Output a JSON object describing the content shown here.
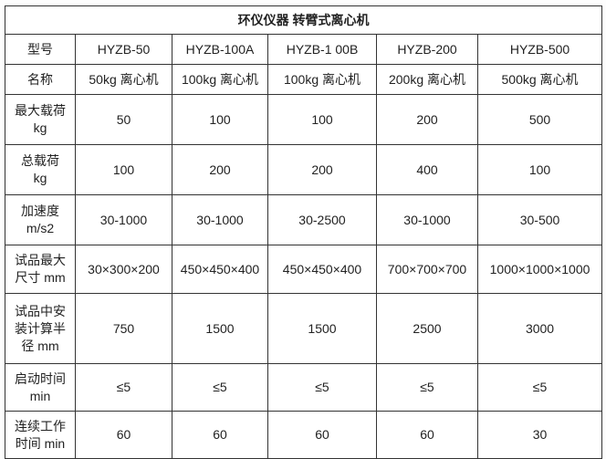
{
  "title": "环仪仪器 转臂式离心机",
  "colors": {
    "border": "#333333",
    "text": "#222222",
    "background": "#ffffff"
  },
  "table": {
    "rows": [
      {
        "label": "型号",
        "values": [
          "HYZB-50",
          "HYZB-100A",
          "HYZB-1 00B",
          "HYZB-200",
          "HYZB-500"
        ]
      },
      {
        "label": "名称",
        "values": [
          "50kg 离心机",
          "100kg 离心机",
          "100kg 离心机",
          "200kg 离心机",
          "500kg 离心机"
        ]
      },
      {
        "label": "最大载荷\nkg",
        "values": [
          "50",
          "100",
          "100",
          "200",
          "500"
        ]
      },
      {
        "label": "总载荷\nkg",
        "values": [
          "100",
          "200",
          "200",
          "400",
          "100"
        ]
      },
      {
        "label": "加速度\nm/s2",
        "values": [
          "30-1000",
          "30-1000",
          "30-2500",
          "30-1000",
          "30-500"
        ]
      },
      {
        "label": "试品最大\n尺寸 mm",
        "values": [
          "30×300×200",
          "450×450×400",
          "450×450×400",
          "700×700×700",
          "1000×1000×1000"
        ]
      },
      {
        "label": "试品中安\n装计算半\n径 mm",
        "values": [
          "750",
          "1500",
          "1500",
          "2500",
          "3000"
        ]
      },
      {
        "label": "启动时间\nmin",
        "values": [
          "≤5",
          "≤5",
          "≤5",
          "≤5",
          "≤5"
        ]
      },
      {
        "label": "连续工作\n时间 min",
        "values": [
          "60",
          "60",
          "60",
          "60",
          "30"
        ]
      }
    ]
  },
  "chart_data": {
    "type": "table",
    "title": "环仪仪器 转臂式离心机",
    "columns": [
      "型号",
      "HYZB-50",
      "HYZB-100A",
      "HYZB-1 00B",
      "HYZB-200",
      "HYZB-500"
    ],
    "rows": [
      [
        "名称",
        "50kg 离心机",
        "100kg 离心机",
        "100kg 离心机",
        "200kg 离心机",
        "500kg 离心机"
      ],
      [
        "最大载荷 kg",
        "50",
        "100",
        "100",
        "200",
        "500"
      ],
      [
        "总载荷 kg",
        "100",
        "200",
        "200",
        "400",
        "100"
      ],
      [
        "加速度 m/s2",
        "30-1000",
        "30-1000",
        "30-2500",
        "30-1000",
        "30-500"
      ],
      [
        "试品最大尺寸 mm",
        "30×300×200",
        "450×450×400",
        "450×450×400",
        "700×700×700",
        "1000×1000×1000"
      ],
      [
        "试品中安装计算半径 mm",
        "750",
        "1500",
        "1500",
        "2500",
        "3000"
      ],
      [
        "启动时间 min",
        "≤5",
        "≤5",
        "≤5",
        "≤5",
        "≤5"
      ],
      [
        "连续工作时间 min",
        "60",
        "60",
        "60",
        "60",
        "30"
      ]
    ]
  }
}
